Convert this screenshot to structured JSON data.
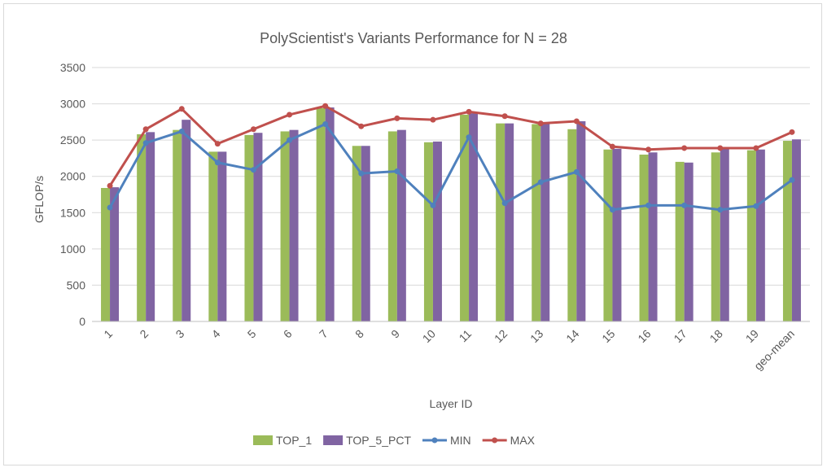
{
  "chart_data": {
    "type": "bar",
    "title": "PolyScientist's Variants Performance for N = 28",
    "xlabel": "Layer ID",
    "ylabel": "GFLOP/s",
    "ylim": [
      0,
      3500
    ],
    "yticks": [
      0,
      500,
      1000,
      1500,
      2000,
      2500,
      3000,
      3500
    ],
    "grid": true,
    "legend_position": "bottom",
    "categories": [
      "1",
      "2",
      "3",
      "4",
      "5",
      "6",
      "7",
      "8",
      "9",
      "10",
      "11",
      "12",
      "13",
      "14",
      "15",
      "16",
      "17",
      "18",
      "19",
      "geo-mean"
    ],
    "series": [
      {
        "name": "TOP_1",
        "kind": "bar",
        "color": "#9bbb59",
        "values": [
          1840,
          2580,
          2640,
          2340,
          2570,
          2620,
          2940,
          2420,
          2620,
          2470,
          2850,
          2730,
          2720,
          2650,
          2370,
          2300,
          2200,
          2330,
          2360,
          2490
        ]
      },
      {
        "name": "TOP_5_PCT",
        "kind": "bar",
        "color": "#8064a2",
        "values": [
          1850,
          2610,
          2780,
          2340,
          2600,
          2640,
          2950,
          2420,
          2640,
          2480,
          2870,
          2730,
          2730,
          2760,
          2380,
          2330,
          2190,
          2390,
          2370,
          2510
        ]
      },
      {
        "name": "MIN",
        "kind": "line",
        "color": "#4f81bd",
        "values": [
          1570,
          2460,
          2620,
          2190,
          2090,
          2500,
          2720,
          2040,
          2070,
          1600,
          2540,
          1630,
          1920,
          2060,
          1540,
          1600,
          1600,
          1540,
          1590,
          1950
        ]
      },
      {
        "name": "MAX",
        "kind": "line",
        "color": "#c0504d",
        "values": [
          1870,
          2650,
          2930,
          2450,
          2650,
          2850,
          2970,
          2690,
          2800,
          2780,
          2890,
          2830,
          2730,
          2760,
          2410,
          2370,
          2390,
          2390,
          2390,
          2610
        ]
      }
    ]
  }
}
